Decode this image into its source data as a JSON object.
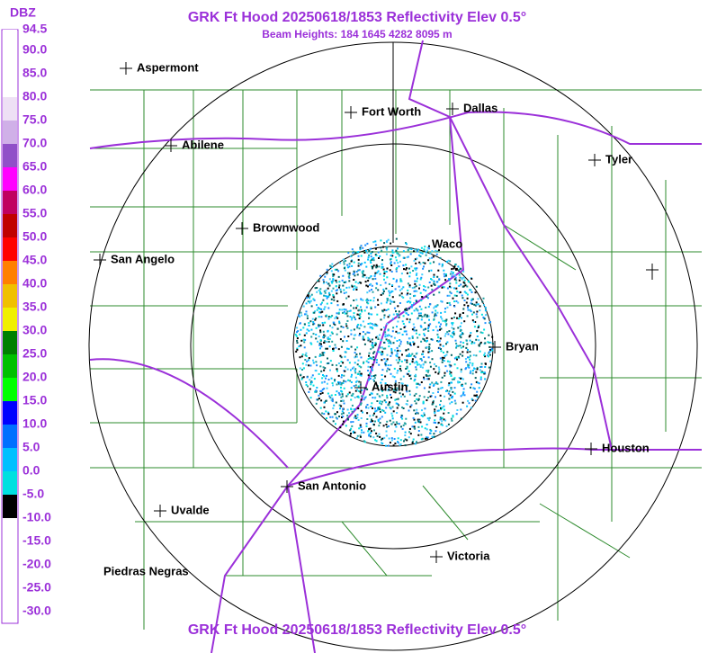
{
  "header": {
    "title": "GRK Ft Hood 20250618/1853 Reflectivity Elev 0.5°",
    "subtitle": "Beam Heights: 184 1645 4282 8095 m"
  },
  "footer": {
    "title": "GRK Ft Hood 20250618/1853 Reflectivity Elev 0.5°"
  },
  "legend": {
    "title": "DBZ",
    "labels": [
      "94.5",
      "90.0",
      "85.0",
      "80.0",
      "75.0",
      "70.0",
      "65.0",
      "60.0",
      "55.0",
      "50.0",
      "45.0",
      "40.0",
      "35.0",
      "30.0",
      "25.0",
      "20.0",
      "15.0",
      "10.0",
      "5.0",
      "0.0",
      "-5.0",
      "-10.0",
      "-15.0",
      "-20.0",
      "-25.0",
      "-30.0"
    ],
    "colors": [
      "#ffffff",
      "#ffffff",
      "#ffffff",
      "#eee0f5",
      "#d0b0e8",
      "#9050c8",
      "#ff00ff",
      "#c00060",
      "#c00000",
      "#ff0000",
      "#ff8000",
      "#f0c000",
      "#f0f000",
      "#008000",
      "#00c000",
      "#00ff00",
      "#0000ff",
      "#0070ff",
      "#00c0ff",
      "#00e0e0",
      "#000000",
      "#ffffff",
      "#ffffff",
      "#ffffff",
      "#ffffff"
    ]
  },
  "cities": [
    {
      "name": "Aspermont"
    },
    {
      "name": "Fort Worth"
    },
    {
      "name": "Dallas"
    },
    {
      "name": "Abilene"
    },
    {
      "name": "Tyler"
    },
    {
      "name": "Brownwood"
    },
    {
      "name": "Waco"
    },
    {
      "name": "San Angelo"
    },
    {
      "name": "Bryan"
    },
    {
      "name": "Austin"
    },
    {
      "name": "Houston"
    },
    {
      "name": "San Antonio"
    },
    {
      "name": "Uvalde"
    },
    {
      "name": "Victoria"
    },
    {
      "name": "Piedras Negras"
    }
  ]
}
